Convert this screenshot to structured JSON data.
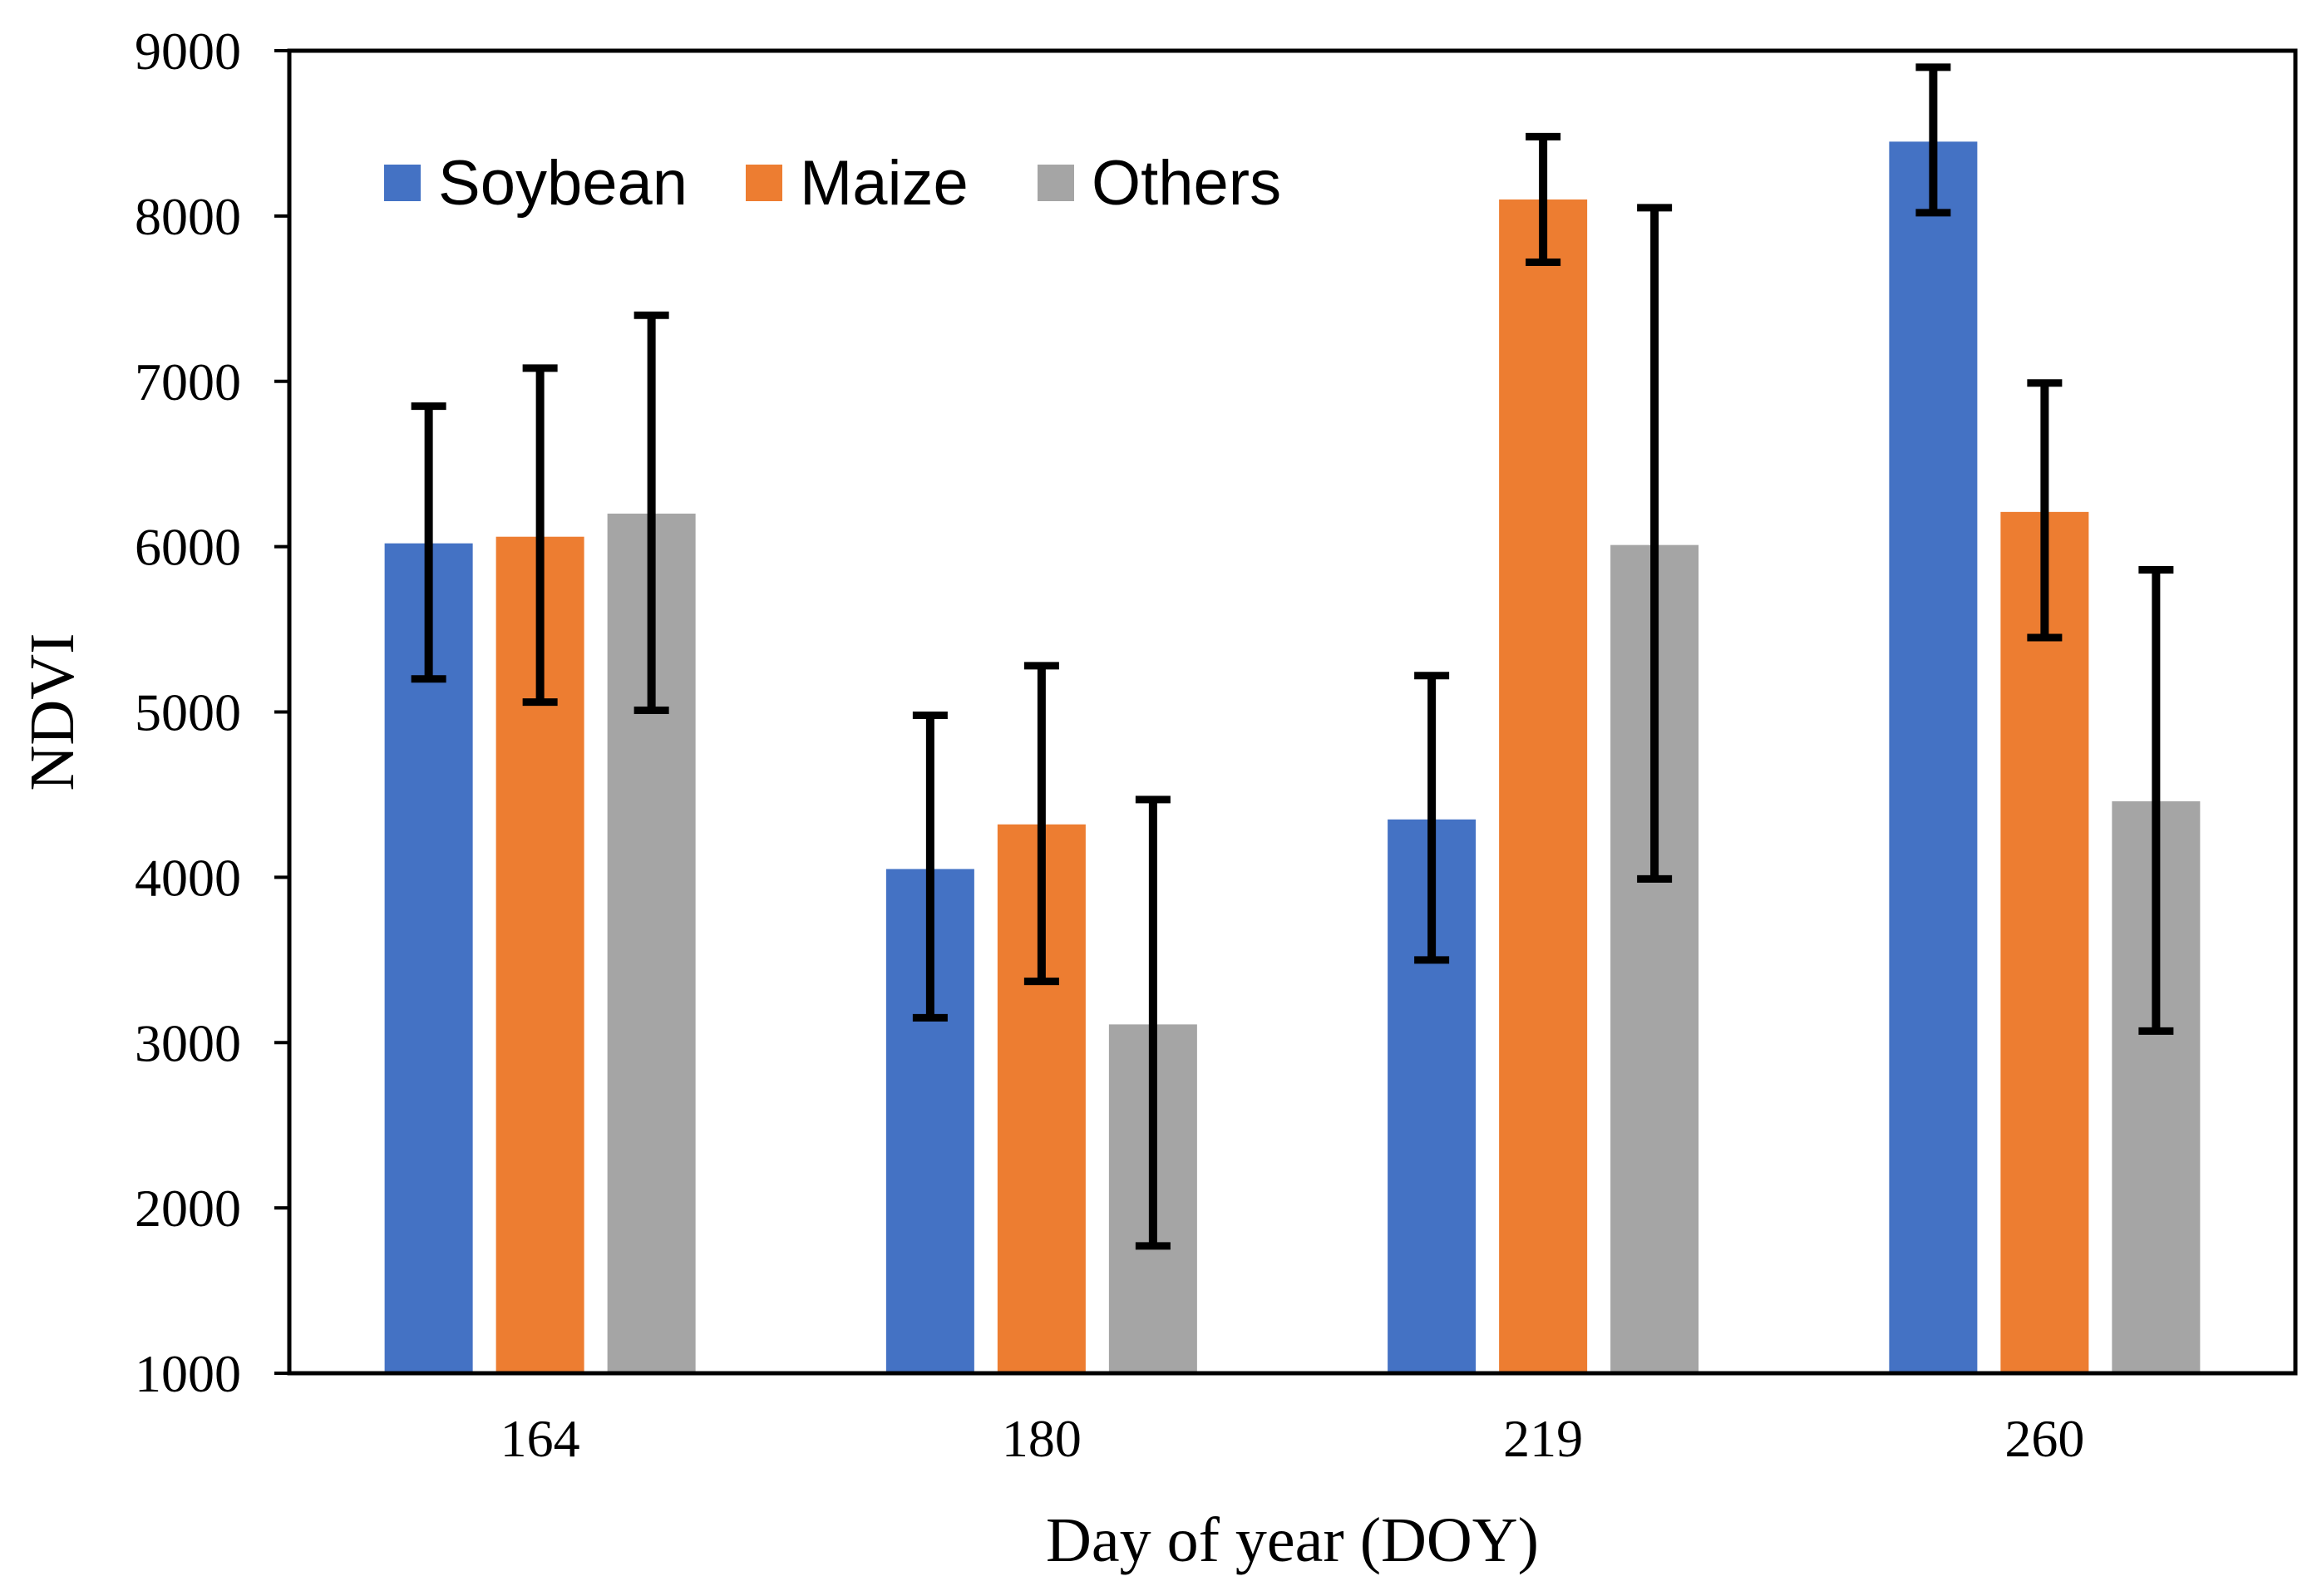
{
  "chart_data": {
    "type": "bar",
    "title": "",
    "xlabel": "Day of year (DOY)",
    "ylabel": "NDVI",
    "categories": [
      "164",
      "180",
      "219",
      "260"
    ],
    "ylim": [
      1000,
      9000
    ],
    "yticks": [
      "1000",
      "2000",
      "3000",
      "4000",
      "5000",
      "6000",
      "7000",
      "8000",
      "9000"
    ],
    "grid": false,
    "legend_position": "top-left",
    "series": [
      {
        "name": "Soybean",
        "color": "#4472C4",
        "values": [
          6020,
          4050,
          4350,
          8450
        ],
        "error_low": [
          5200,
          3150,
          3500,
          8020
        ],
        "error_high": [
          6850,
          4980,
          5220,
          8900
        ]
      },
      {
        "name": "Maize",
        "color": "#ED7D31",
        "values": [
          6060,
          4320,
          8100,
          6210
        ],
        "error_low": [
          5060,
          3370,
          7720,
          5450
        ],
        "error_high": [
          7080,
          5280,
          8480,
          6990
        ]
      },
      {
        "name": "Others",
        "color": "#A5A5A5",
        "values": [
          6200,
          3110,
          6010,
          4460
        ],
        "error_low": [
          5010,
          1770,
          3990,
          3070
        ],
        "error_high": [
          7400,
          4470,
          8050,
          5860
        ]
      }
    ]
  }
}
